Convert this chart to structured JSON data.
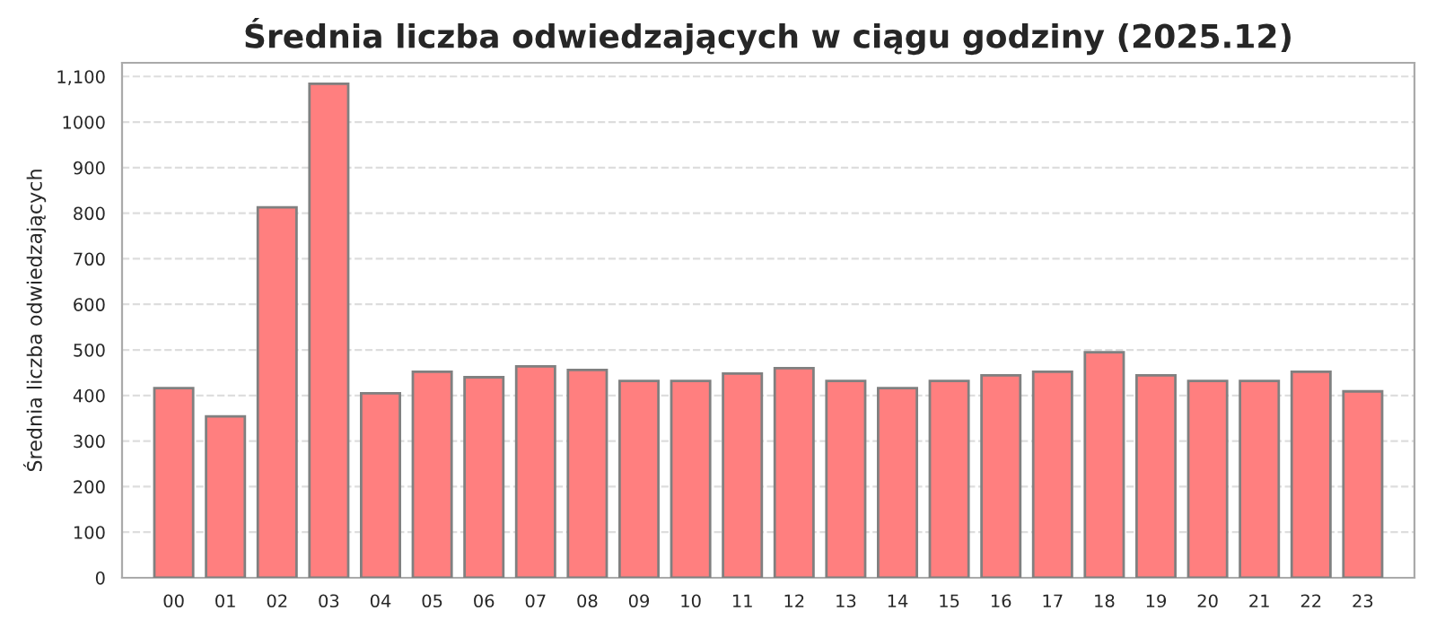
{
  "chart_data": {
    "type": "bar",
    "title": "Średnia liczba odwiedzających w ciągu godziny (2025.12)",
    "ylabel": "Średnia liczba odwiedzających",
    "categories": [
      "00",
      "01",
      "02",
      "03",
      "04",
      "05",
      "06",
      "07",
      "08",
      "09",
      "10",
      "11",
      "12",
      "13",
      "14",
      "15",
      "16",
      "17",
      "18",
      "19",
      "20",
      "21",
      "22",
      "23"
    ],
    "values": [
      416,
      354,
      813,
      1084,
      405,
      452,
      440,
      464,
      456,
      432,
      432,
      448,
      460,
      432,
      416,
      432,
      444,
      452,
      495,
      444,
      432,
      432,
      452,
      409
    ],
    "color": "#ff7f7f",
    "ylim": [
      0,
      1130
    ],
    "yticks": [
      0,
      100,
      200,
      300,
      400,
      500,
      600,
      700,
      800,
      900,
      1000,
      {
        "value": 1100,
        "label": "1,100"
      }
    ],
    "grid": "y",
    "legend": false
  }
}
